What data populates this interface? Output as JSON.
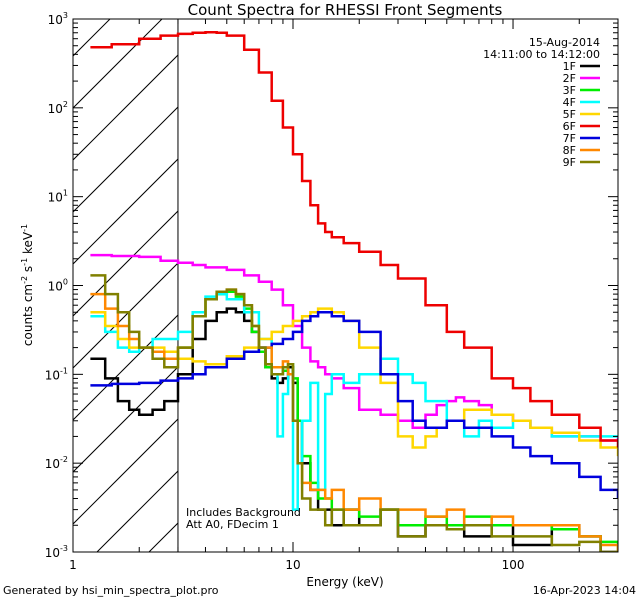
{
  "chart_data": {
    "type": "line",
    "title": "Count Spectra for RHESSI Front Segments",
    "xlabel": "Energy (keV)",
    "ylabel": "counts cm",
    "ylabel_parts": {
      "base": "counts cm",
      "exp1": "-2",
      "s": " s",
      "exp2": "-1",
      "kev": " keV",
      "exp3": "-1"
    },
    "xscale": "log",
    "yscale": "log",
    "xlim": [
      1,
      300
    ],
    "ylim": [
      0.001,
      1000
    ],
    "x_ticks": [
      {
        "value": 1,
        "label": "1"
      },
      {
        "value": 10,
        "label": "10"
      },
      {
        "value": 100,
        "label": "100"
      }
    ],
    "y_ticks": [
      {
        "value": 0.001,
        "mant": "10",
        "exp": "-3"
      },
      {
        "value": 0.01,
        "mant": "10",
        "exp": "-2"
      },
      {
        "value": 0.1,
        "mant": "10",
        "exp": "-1"
      },
      {
        "value": 1,
        "mant": "10",
        "exp": "0"
      },
      {
        "value": 10,
        "mant": "10",
        "exp": "1"
      },
      {
        "value": 100,
        "mant": "10",
        "exp": "2"
      },
      {
        "value": 1000,
        "mant": "10",
        "exp": "3"
      }
    ],
    "attenuator_cutoff_kev": 3,
    "date": "15-Aug-2014",
    "time_range": "14:11:00 to 14:12:00",
    "annotation_lines": [
      "Includes Background",
      "Att A0, FDecim 1"
    ],
    "footer_left": "Generated by hsi_min_spectra_plot.pro",
    "footer_right": "16-Apr-2023 14:04",
    "series": [
      {
        "name": "1F",
        "color": "#000000",
        "x": [
          1.2,
          1.4,
          1.6,
          1.8,
          2.0,
          2.3,
          2.6,
          3.0,
          3.5,
          4.0,
          4.5,
          5.0,
          5.5,
          6.0,
          6.5,
          7.0,
          7.5,
          8.0,
          8.5,
          9.0,
          9.5,
          10.0,
          10.5,
          11,
          12,
          13,
          14,
          15,
          17,
          20,
          25,
          30,
          40,
          50,
          60,
          80,
          100,
          150,
          200,
          250,
          300
        ],
        "y": [
          0.15,
          0.09,
          0.05,
          0.04,
          0.035,
          0.04,
          0.05,
          0.1,
          0.25,
          0.4,
          0.5,
          0.55,
          0.5,
          0.4,
          0.3,
          0.2,
          0.12,
          0.09,
          0.08,
          0.09,
          0.12,
          0.08,
          0.03,
          0.01,
          0.005,
          0.003,
          0.003,
          0.002,
          0.003,
          0.002,
          0.003,
          0.0015,
          0.002,
          0.002,
          0.0015,
          0.002,
          0.0012,
          0.002,
          0.0015,
          0.001,
          0.001
        ]
      },
      {
        "name": "2F",
        "color": "#ff00ff",
        "x": [
          1.2,
          1.5,
          2.0,
          2.5,
          3.0,
          3.5,
          4.0,
          5.0,
          6.0,
          7.0,
          8.0,
          9.0,
          10,
          11,
          12,
          13,
          14,
          15,
          17,
          20,
          25,
          30,
          35,
          40,
          45,
          50,
          55,
          60,
          70,
          80,
          100,
          120,
          150,
          200,
          250,
          300
        ],
        "y": [
          2.2,
          2.15,
          2.1,
          1.9,
          1.8,
          1.7,
          1.6,
          1.5,
          1.3,
          1.1,
          0.9,
          0.6,
          0.35,
          0.2,
          0.14,
          0.12,
          0.1,
          0.09,
          0.07,
          0.04,
          0.035,
          0.03,
          0.025,
          0.035,
          0.045,
          0.05,
          0.055,
          0.05,
          0.045,
          0.035,
          0.03,
          0.025,
          0.02,
          0.02,
          0.018,
          0.02
        ]
      },
      {
        "name": "3F",
        "color": "#00ee00",
        "x": [
          3.0,
          3.5,
          4.0,
          4.5,
          5.0,
          5.5,
          6.0,
          6.5,
          7.0,
          7.5,
          8.0,
          8.5,
          9.0,
          9.5,
          10,
          10.5,
          11,
          12,
          13,
          14,
          15,
          17,
          20,
          25,
          30,
          40,
          50,
          60,
          80,
          100,
          150,
          200,
          250,
          300
        ],
        "y": [
          0.2,
          0.45,
          0.7,
          0.8,
          0.85,
          0.75,
          0.55,
          0.3,
          0.18,
          0.12,
          0.1,
          0.1,
          0.11,
          0.13,
          0.09,
          0.03,
          0.012,
          0.006,
          0.004,
          0.004,
          0.003,
          0.003,
          0.0025,
          0.003,
          0.002,
          0.0025,
          0.002,
          0.0025,
          0.002,
          0.002,
          0.0018,
          0.0015,
          0.0013,
          0.001
        ]
      },
      {
        "name": "4F",
        "color": "#00ffff",
        "x": [
          1.2,
          1.4,
          1.6,
          1.8,
          2.0,
          2.3,
          2.6,
          3.0,
          3.5,
          4.0,
          4.5,
          5.0,
          6.0,
          7.0,
          8.0,
          8.5,
          9.0,
          9.5,
          10,
          10.5,
          11,
          12,
          13,
          14,
          15,
          17,
          20,
          25,
          30,
          35,
          40,
          50,
          60,
          70,
          80,
          100,
          120,
          150,
          200,
          250,
          300
        ],
        "y": [
          0.45,
          0.3,
          0.2,
          0.18,
          0.2,
          0.25,
          0.25,
          0.3,
          0.5,
          0.75,
          0.8,
          0.7,
          0.5,
          0.25,
          0.1,
          0.02,
          0.06,
          0.1,
          0.003,
          0.01,
          0.03,
          0.08,
          0.005,
          0.06,
          0.1,
          0.08,
          0.1,
          0.15,
          0.1,
          0.08,
          0.05,
          0.03,
          0.02,
          0.03,
          0.025,
          0.03,
          0.025,
          0.02,
          0.02,
          0.02,
          0.02
        ]
      },
      {
        "name": "5F",
        "color": "#ffd700",
        "x": [
          1.2,
          1.4,
          1.6,
          1.8,
          2.0,
          2.3,
          2.6,
          3.0,
          3.5,
          4.0,
          5.0,
          6.0,
          7.0,
          8.0,
          9.0,
          10,
          11,
          12,
          13,
          14,
          15,
          17,
          20,
          25,
          30,
          35,
          40,
          45,
          50,
          60,
          70,
          80,
          100,
          120,
          150,
          200,
          250,
          300
        ],
        "y": [
          0.5,
          0.35,
          0.25,
          0.2,
          0.2,
          0.2,
          0.18,
          0.15,
          0.14,
          0.13,
          0.16,
          0.2,
          0.25,
          0.3,
          0.35,
          0.4,
          0.45,
          0.5,
          0.55,
          0.55,
          0.5,
          0.4,
          0.2,
          0.08,
          0.02,
          0.015,
          0.02,
          0.025,
          0.03,
          0.04,
          0.04,
          0.035,
          0.03,
          0.025,
          0.022,
          0.018,
          0.015,
          0.012
        ]
      },
      {
        "name": "6F",
        "color": "#ee0000",
        "x": [
          1.2,
          1.5,
          2.0,
          2.5,
          3.0,
          3.5,
          4.0,
          4.5,
          5.0,
          6.0,
          7.0,
          8.0,
          9.0,
          10,
          11,
          12,
          13,
          14,
          15,
          17,
          20,
          25,
          30,
          40,
          50,
          60,
          80,
          100,
          120,
          150,
          200,
          250,
          300
        ],
        "y": [
          480,
          520,
          600,
          650,
          680,
          700,
          710,
          700,
          650,
          450,
          250,
          120,
          60,
          30,
          15,
          8,
          5,
          4,
          3.5,
          3,
          2.4,
          1.7,
          1.2,
          0.6,
          0.3,
          0.2,
          0.09,
          0.07,
          0.05,
          0.035,
          0.025,
          0.018,
          0.015
        ]
      },
      {
        "name": "7F",
        "color": "#0000dd",
        "x": [
          1.2,
          1.5,
          2.0,
          2.5,
          3.0,
          3.5,
          4.0,
          5.0,
          6.0,
          7.0,
          8.0,
          9.0,
          10,
          11,
          12,
          13,
          14,
          15,
          17,
          20,
          25,
          30,
          35,
          40,
          50,
          60,
          80,
          100,
          120,
          150,
          200,
          250,
          300
        ],
        "y": [
          0.075,
          0.078,
          0.08,
          0.085,
          0.09,
          0.1,
          0.12,
          0.15,
          0.18,
          0.2,
          0.22,
          0.25,
          0.3,
          0.4,
          0.45,
          0.5,
          0.5,
          0.45,
          0.4,
          0.3,
          0.1,
          0.05,
          0.03,
          0.025,
          0.03,
          0.025,
          0.02,
          0.015,
          0.012,
          0.01,
          0.007,
          0.005,
          0.004
        ]
      },
      {
        "name": "8F",
        "color": "#ff8800",
        "x": [
          1.2,
          1.4,
          1.6,
          1.8,
          2.0,
          2.3,
          2.6,
          3.0,
          3.5,
          4.0,
          4.5,
          5.0,
          5.5,
          6.0,
          6.5,
          7.0,
          8.0,
          9.0,
          9.5,
          10,
          10.5,
          11,
          12,
          13,
          14,
          15,
          17,
          20,
          25,
          30,
          40,
          50,
          60,
          80,
          100,
          150,
          200,
          250,
          300
        ],
        "y": [
          0.8,
          0.55,
          0.35,
          0.25,
          0.2,
          0.18,
          0.15,
          0.2,
          0.45,
          0.7,
          0.85,
          0.9,
          0.8,
          0.6,
          0.35,
          0.2,
          0.12,
          0.14,
          0.1,
          0.03,
          0.01,
          0.006,
          0.005,
          0.005,
          0.004,
          0.005,
          0.003,
          0.004,
          0.003,
          0.003,
          0.0025,
          0.003,
          0.002,
          0.0025,
          0.002,
          0.002,
          0.0015,
          0.0012,
          0.001
        ]
      },
      {
        "name": "9F",
        "color": "#808000",
        "x": [
          1.2,
          1.4,
          1.6,
          1.8,
          2.0,
          2.3,
          2.6,
          3.0,
          3.5,
          4.0,
          4.5,
          5.0,
          5.5,
          6.0,
          6.5,
          7.0,
          7.5,
          8.0,
          9.0,
          9.5,
          10,
          10.5,
          11,
          12,
          13,
          14,
          15,
          17,
          20,
          25,
          30,
          40,
          50,
          60,
          80,
          100,
          150,
          200,
          250,
          300
        ],
        "y": [
          1.3,
          0.8,
          0.5,
          0.3,
          0.2,
          0.15,
          0.12,
          0.2,
          0.45,
          0.7,
          0.85,
          0.9,
          0.8,
          0.6,
          0.35,
          0.2,
          0.13,
          0.1,
          0.12,
          0.13,
          0.03,
          0.01,
          0.004,
          0.003,
          0.003,
          0.002,
          0.003,
          0.002,
          0.002,
          0.003,
          0.0015,
          0.002,
          0.0018,
          0.002,
          0.0015,
          0.0015,
          0.0012,
          0.0013,
          0.001,
          0.001
        ]
      }
    ]
  }
}
